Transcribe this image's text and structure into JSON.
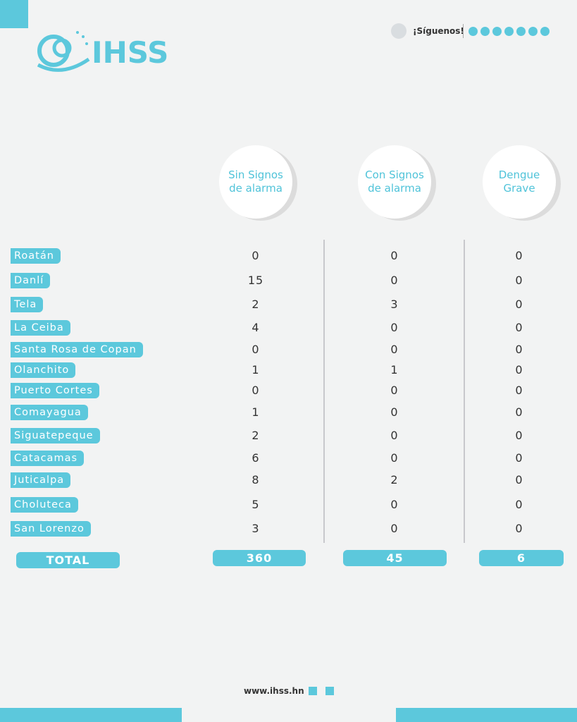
{
  "header": {
    "logo": "IHSS",
    "follow": "¡Síguenos!"
  },
  "table": {
    "columns": [
      "Sin Signos de alarma",
      "Con Signos de alarma",
      "Dengue Grave"
    ],
    "rows": [
      [
        "Roatán",
        0,
        0,
        0
      ],
      [
        "Danlí",
        15,
        0,
        0
      ],
      [
        "Tela",
        2,
        3,
        0
      ],
      [
        "La Ceiba",
        4,
        0,
        0
      ],
      [
        "Santa Rosa de Copan",
        0,
        0,
        0
      ],
      [
        "Olanchito",
        1,
        1,
        0
      ],
      [
        "Puerto Cortes",
        0,
        0,
        0
      ],
      [
        "Comayagua",
        1,
        0,
        0
      ],
      [
        "Siguatepeque",
        2,
        0,
        0
      ],
      [
        "Catacamas",
        6,
        0,
        0
      ],
      [
        "Juticalpa",
        8,
        2,
        0
      ],
      [
        "Choluteca",
        5,
        0,
        0
      ],
      [
        "San Lorenzo",
        3,
        0,
        0
      ]
    ],
    "total": {
      "label": "TOTAL",
      "values": [
        360,
        45,
        6
      ]
    }
  },
  "footer": {
    "url": "www.ihss.hn"
  }
}
